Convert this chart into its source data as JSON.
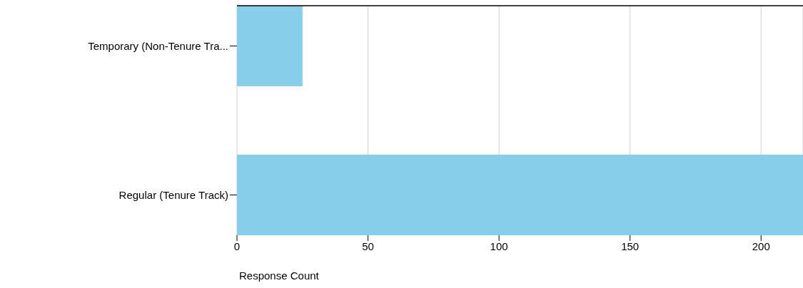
{
  "chart_data": {
    "type": "bar",
    "orientation": "horizontal",
    "categories": [
      "Temporary (Non-Tenure Tra...",
      "Regular (Tenure Track)"
    ],
    "values": [
      25,
      216
    ],
    "color": "#87ceeb",
    "xlabel": "Response Count",
    "xlim": [
      0,
      216
    ],
    "xticks": [
      0,
      50,
      100,
      150,
      200
    ],
    "grid": "x"
  }
}
